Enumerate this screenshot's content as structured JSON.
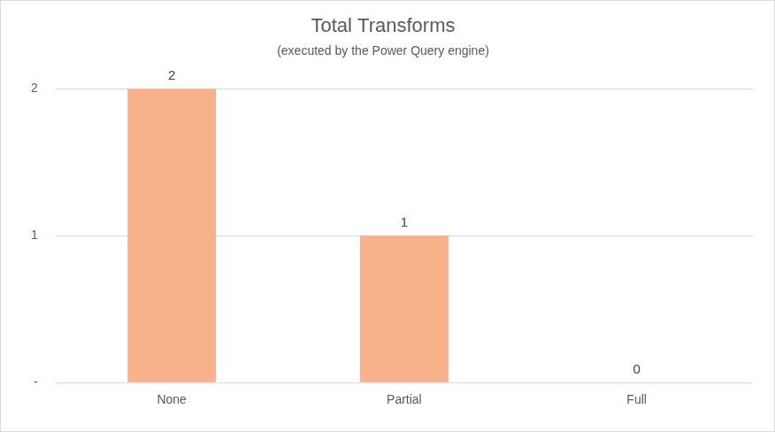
{
  "chart_data": {
    "type": "bar",
    "title": "Total Transforms",
    "subtitle": "(executed by the Power Query engine)",
    "categories": [
      "None",
      "Partial",
      "Full"
    ],
    "values": [
      2,
      1,
      0
    ],
    "color": "#f7b28b",
    "ylim": [
      0,
      2
    ],
    "yticks": [
      {
        "value": 0,
        "label": "-"
      },
      1,
      2
    ],
    "grid": true,
    "data_labels": true
  }
}
